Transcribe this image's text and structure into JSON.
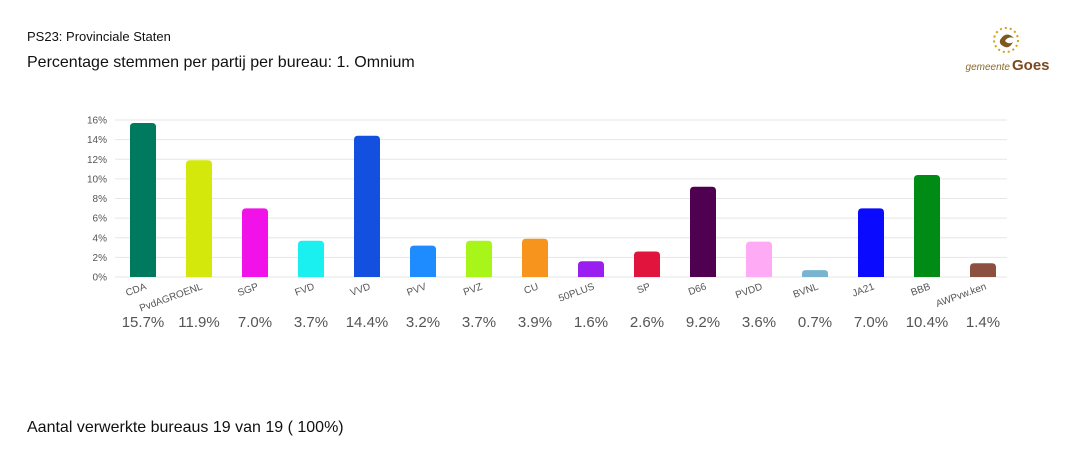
{
  "header": {
    "election": "PS23: Provinciale Staten",
    "title": "Percentage stemmen per partij per bureau: 1. Omnium"
  },
  "logo": {
    "prefix": "gemeente",
    "name": "Goes"
  },
  "chart_data": {
    "type": "bar",
    "categories": [
      "CDA",
      "PvdAGROENL",
      "SGP",
      "FVD",
      "VVD",
      "PVV",
      "PVZ",
      "CU",
      "50PLUS",
      "SP",
      "D66",
      "PVDD",
      "BVNL",
      "JA21",
      "BBB",
      "AWPvw.ken"
    ],
    "values": [
      15.7,
      11.9,
      7.0,
      3.7,
      14.4,
      3.2,
      3.7,
      3.9,
      1.6,
      2.6,
      9.2,
      3.6,
      0.7,
      7.0,
      10.4,
      1.4
    ],
    "value_labels": [
      "15.7%",
      "11.9%",
      "7.0%",
      "3.7%",
      "14.4%",
      "3.2%",
      "3.7%",
      "3.9%",
      "1.6%",
      "2.6%",
      "9.2%",
      "3.6%",
      "0.7%",
      "7.0%",
      "10.4%",
      "1.4%"
    ],
    "colors": [
      "#007a5e",
      "#d4e80c",
      "#f012e8",
      "#1af0f0",
      "#1450e0",
      "#1e8cff",
      "#a8f51a",
      "#f7941d",
      "#9b1ef0",
      "#e0143c",
      "#500050",
      "#ffaaf5",
      "#78b4d2",
      "#0a0aff",
      "#008c14",
      "#8c5041"
    ],
    "ylim": [
      0,
      16
    ],
    "yticks": [
      {
        "value": 0,
        "label": "0%"
      },
      {
        "value": 2,
        "label": "2%"
      },
      {
        "value": 4,
        "label": "4%"
      },
      {
        "value": 6,
        "label": "6%"
      },
      {
        "value": 8,
        "label": "8%"
      },
      {
        "value": 10,
        "label": "10%"
      },
      {
        "value": 12,
        "label": "12%"
      },
      {
        "value": 14,
        "label": "14%"
      },
      {
        "value": 16,
        "label": "16%"
      }
    ],
    "grid": true
  },
  "footer": {
    "text": "Aantal verwerkte bureaus 19 van 19 ( 100%)"
  }
}
